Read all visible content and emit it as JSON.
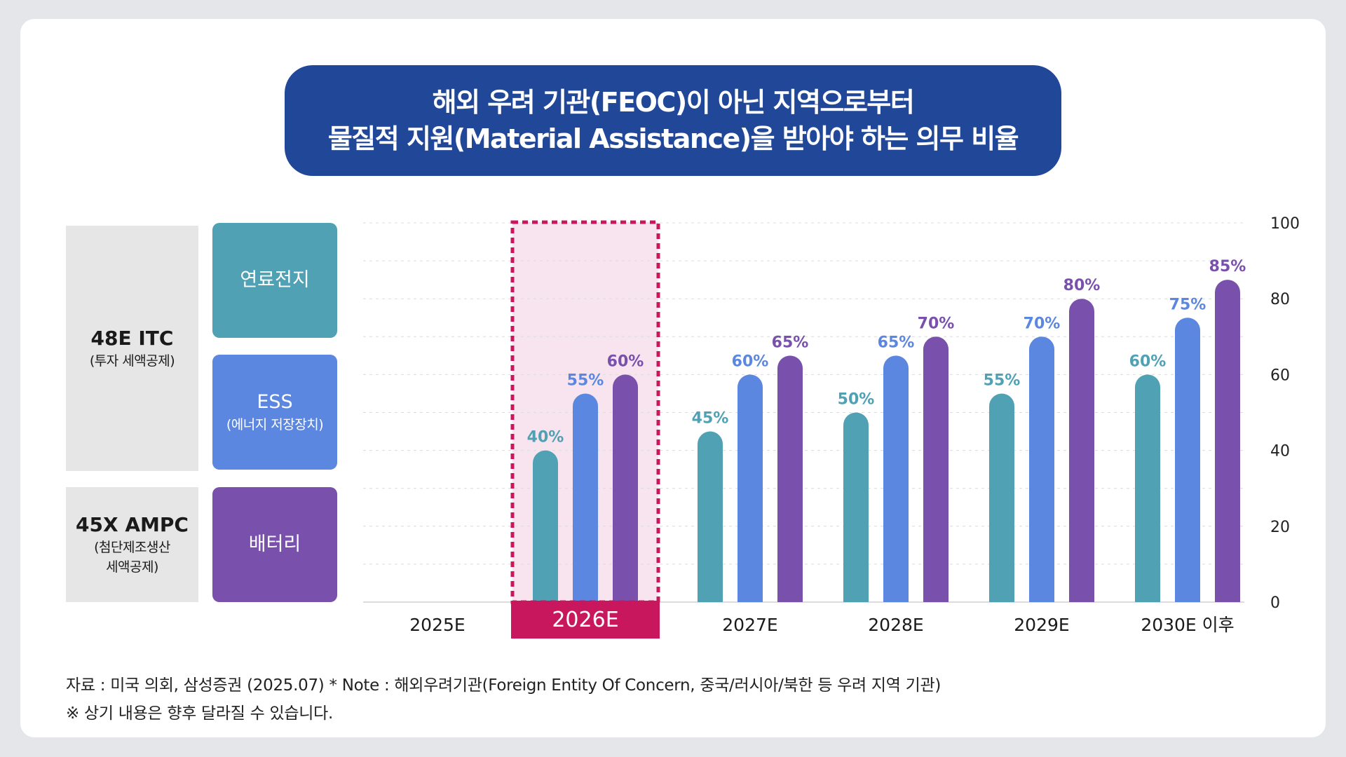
{
  "title": {
    "line1": "해외 우려 기관(FEOC)이 아닌 지역으로부터",
    "line2": "물질적 지원(Material Assistance)을 받아야 하는 의무 비율"
  },
  "credits": [
    {
      "name": "48E ITC",
      "desc": "(투자 세액공제)"
    },
    {
      "name": "45X AMPC",
      "desc_lines": [
        "(첨단제조생산",
        "세액공제)"
      ]
    }
  ],
  "categories": [
    {
      "name": "연료전지",
      "color": "#4fa1b3"
    },
    {
      "name": "ESS",
      "desc": "(에너지 저장장치)",
      "color": "#5b87e0"
    },
    {
      "name": "배터리",
      "color": "#7951ad"
    }
  ],
  "chart_data": {
    "type": "bar",
    "title": "해외 우려 기관(FEOC)이 아닌 지역으로부터 물질적 지원(Material Assistance)을 받아야 하는 의무 비율",
    "categories": [
      "2025E",
      "2026E",
      "2027E",
      "2028E",
      "2029E",
      "2030E 이후"
    ],
    "highlight_category": "2026E",
    "series": [
      {
        "name": "연료전지",
        "color": "#4fa1b3",
        "values": [
          null,
          40,
          45,
          50,
          55,
          60
        ]
      },
      {
        "name": "ESS",
        "color": "#5b87e0",
        "values": [
          null,
          55,
          60,
          65,
          70,
          75
        ]
      },
      {
        "name": "배터리",
        "color": "#7951ad",
        "values": [
          null,
          60,
          65,
          70,
          80,
          85
        ]
      }
    ],
    "value_suffix": "%",
    "y_ticks": [
      "0",
      "20",
      "40",
      "60",
      "80",
      "100"
    ],
    "ylim": [
      0,
      100
    ],
    "y_axis_side": "right",
    "grid": "dashed",
    "highlight_color": "#c8175d"
  },
  "footnotes": {
    "source": "자료 : 미국 의회, 삼성증권 (2025.07) * Note : 해외우려기관(Foreign Entity Of Concern, 중국/러시아/북한 등 우려 지역 기관)",
    "disclaimer": "※ 상기 내용은 향후 달라질 수 있습니다."
  }
}
